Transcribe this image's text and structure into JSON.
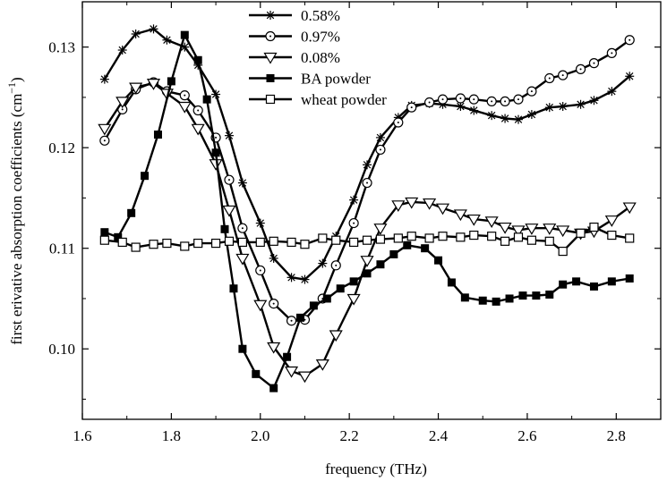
{
  "chart_data": {
    "type": "line",
    "xlabel": "frequency (THz)",
    "ylabel": "first erivative absorption coefficients (cm",
    "ylabel_sup": "−1",
    "ylabel_tail": ")",
    "xlim": [
      1.6,
      2.9
    ],
    "ylim": [
      0.093,
      0.1345
    ],
    "xticks": [
      1.6,
      1.8,
      2.0,
      2.2,
      2.4,
      2.6,
      2.8
    ],
    "xtick_labels": [
      "1.6",
      "1.8",
      "2.0",
      "2.2",
      "2.4",
      "2.6",
      "2.8"
    ],
    "yticks": [
      0.1,
      0.11,
      0.12,
      0.13
    ],
    "ytick_labels": [
      "0.10",
      "0.11",
      "0.12",
      "0.13"
    ],
    "legend_position": "top-center",
    "series": [
      {
        "name": "0.58%",
        "marker": "star",
        "x": [
          1.65,
          1.69,
          1.72,
          1.76,
          1.79,
          1.83,
          1.86,
          1.9,
          1.93,
          1.96,
          2.0,
          2.03,
          2.07,
          2.1,
          2.14,
          2.17,
          2.21,
          2.24,
          2.27,
          2.31,
          2.34,
          2.38,
          2.41,
          2.45,
          2.48,
          2.52,
          2.55,
          2.58,
          2.61,
          2.65,
          2.68,
          2.72,
          2.75,
          2.79,
          2.83
        ],
        "y": [
          0.1268,
          0.1297,
          0.1313,
          0.1318,
          0.1307,
          0.13,
          0.1282,
          0.1253,
          0.1212,
          0.1165,
          0.1125,
          0.109,
          0.1071,
          0.1069,
          0.1085,
          0.1112,
          0.1148,
          0.1183,
          0.121,
          0.123,
          0.1242,
          0.1244,
          0.1243,
          0.1241,
          0.1237,
          0.1232,
          0.1229,
          0.1228,
          0.1233,
          0.124,
          0.1241,
          0.1243,
          0.1247,
          0.1256,
          0.1271
        ]
      },
      {
        "name": "0.97%",
        "marker": "dotted-circle",
        "x": [
          1.65,
          1.69,
          1.72,
          1.76,
          1.79,
          1.83,
          1.86,
          1.9,
          1.93,
          1.96,
          2.0,
          2.03,
          2.07,
          2.1,
          2.14,
          2.17,
          2.21,
          2.24,
          2.27,
          2.31,
          2.34,
          2.38,
          2.41,
          2.45,
          2.48,
          2.52,
          2.55,
          2.58,
          2.61,
          2.65,
          2.68,
          2.72,
          2.75,
          2.79,
          2.83
        ],
        "y": [
          0.1207,
          0.1238,
          0.1258,
          0.1265,
          0.1256,
          0.1252,
          0.1237,
          0.121,
          0.1168,
          0.112,
          0.1078,
          0.1045,
          0.1028,
          0.1029,
          0.105,
          0.1083,
          0.1125,
          0.1165,
          0.1198,
          0.1225,
          0.124,
          0.1245,
          0.1248,
          0.1249,
          0.1248,
          0.1246,
          0.1246,
          0.1248,
          0.1256,
          0.1269,
          0.1272,
          0.1278,
          0.1284,
          0.1294,
          0.1307
        ]
      },
      {
        "name": "0.08%",
        "marker": "triangle-down",
        "x": [
          1.65,
          1.69,
          1.72,
          1.76,
          1.79,
          1.83,
          1.86,
          1.9,
          1.93,
          1.96,
          2.0,
          2.03,
          2.07,
          2.1,
          2.14,
          2.17,
          2.21,
          2.24,
          2.27,
          2.31,
          2.34,
          2.38,
          2.41,
          2.45,
          2.48,
          2.52,
          2.55,
          2.58,
          2.61,
          2.65,
          2.68,
          2.72,
          2.75,
          2.79,
          2.83
        ],
        "y": [
          0.1219,
          0.1246,
          0.126,
          0.1264,
          0.1254,
          0.1241,
          0.1219,
          0.1184,
          0.1138,
          0.109,
          0.1044,
          0.1002,
          0.0978,
          0.0973,
          0.0985,
          0.1014,
          0.105,
          0.1088,
          0.112,
          0.1143,
          0.1146,
          0.1145,
          0.114,
          0.1134,
          0.1129,
          0.1127,
          0.1121,
          0.1118,
          0.112,
          0.112,
          0.1118,
          0.1115,
          0.1117,
          0.1128,
          0.1141
        ]
      },
      {
        "name": "BA powder",
        "marker": "filled-square",
        "x": [
          1.65,
          1.68,
          1.71,
          1.74,
          1.77,
          1.8,
          1.83,
          1.86,
          1.88,
          1.9,
          1.92,
          1.94,
          1.96,
          1.99,
          2.03,
          2.06,
          2.09,
          2.12,
          2.15,
          2.18,
          2.21,
          2.24,
          2.27,
          2.3,
          2.33,
          2.37,
          2.4,
          2.43,
          2.46,
          2.5,
          2.53,
          2.56,
          2.59,
          2.62,
          2.65,
          2.68,
          2.71,
          2.75,
          2.79,
          2.83
        ],
        "y": [
          0.1116,
          0.1111,
          0.1135,
          0.1172,
          0.1213,
          0.1266,
          0.1312,
          0.1287,
          0.1248,
          0.1195,
          0.1119,
          0.106,
          0.1,
          0.0975,
          0.0961,
          0.0992,
          0.1031,
          0.1043,
          0.105,
          0.106,
          0.1067,
          0.1075,
          0.1084,
          0.1094,
          0.1103,
          0.11,
          0.1088,
          0.1066,
          0.1051,
          0.1048,
          0.1047,
          0.105,
          0.1053,
          0.1053,
          0.1054,
          0.1064,
          0.1067,
          0.1062,
          0.1067,
          0.107
        ]
      },
      {
        "name": "wheat powder",
        "marker": "open-square",
        "x": [
          1.65,
          1.69,
          1.72,
          1.76,
          1.79,
          1.83,
          1.86,
          1.9,
          1.93,
          1.96,
          2.0,
          2.03,
          2.07,
          2.1,
          2.14,
          2.17,
          2.21,
          2.24,
          2.27,
          2.31,
          2.34,
          2.38,
          2.41,
          2.45,
          2.48,
          2.52,
          2.55,
          2.58,
          2.61,
          2.65,
          2.68,
          2.72,
          2.75,
          2.79,
          2.83
        ],
        "y": [
          0.1108,
          0.1106,
          0.1101,
          0.1104,
          0.1105,
          0.1102,
          0.1105,
          0.1105,
          0.1107,
          0.1106,
          0.1106,
          0.1107,
          0.1106,
          0.1104,
          0.111,
          0.1108,
          0.1106,
          0.1108,
          0.1109,
          0.111,
          0.1112,
          0.111,
          0.1112,
          0.1111,
          0.1113,
          0.1112,
          0.1107,
          0.1111,
          0.1108,
          0.1107,
          0.1097,
          0.1115,
          0.1121,
          0.1113,
          0.111
        ]
      }
    ]
  }
}
